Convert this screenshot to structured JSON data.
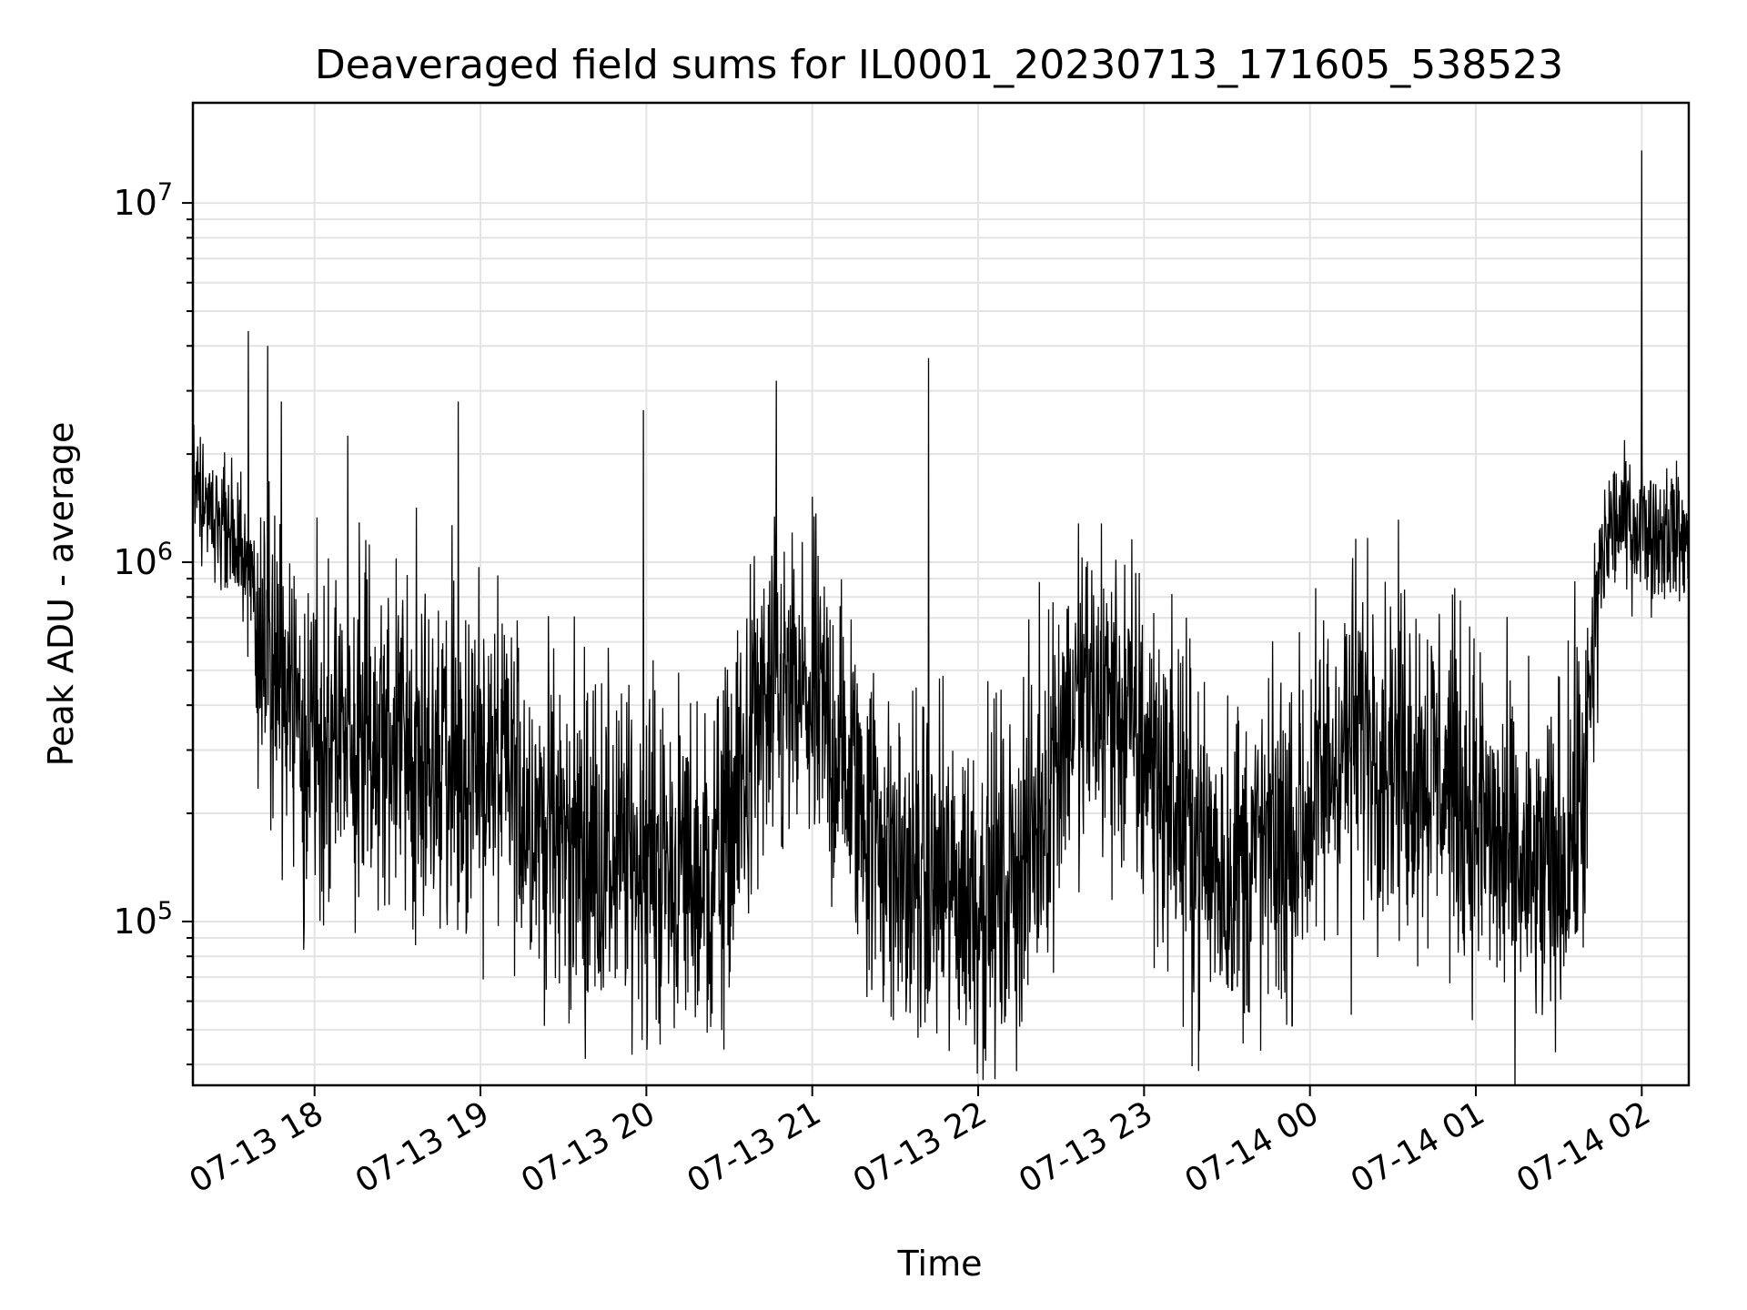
{
  "chart_data": {
    "type": "line",
    "title": "Deaveraged field sums for IL0001_20230713_171605_538523",
    "xlabel": "Time",
    "ylabel": "Peak ADU - average",
    "yscale": "log",
    "xlim": [
      "2023-07-13 17:16",
      "2023-07-14 02:17"
    ],
    "ylim": [
      35000,
      19000000
    ],
    "grid": true,
    "line_color": "#000000",
    "x_ticks": [
      {
        "time": "2023-07-13 18:00",
        "label": "07-13 18"
      },
      {
        "time": "2023-07-13 19:00",
        "label": "07-13 19"
      },
      {
        "time": "2023-07-13 20:00",
        "label": "07-13 20"
      },
      {
        "time": "2023-07-13 21:00",
        "label": "07-13 21"
      },
      {
        "time": "2023-07-13 22:00",
        "label": "07-13 22"
      },
      {
        "time": "2023-07-13 23:00",
        "label": "07-13 23"
      },
      {
        "time": "2023-07-14 00:00",
        "label": "07-14 00"
      },
      {
        "time": "2023-07-14 01:00",
        "label": "07-14 01"
      },
      {
        "time": "2023-07-14 02:00",
        "label": "07-14 02"
      }
    ],
    "y_ticks": [
      {
        "value": 100000,
        "base": "10",
        "exp": "5"
      },
      {
        "value": 1000000,
        "base": "10",
        "exp": "6"
      },
      {
        "value": 10000000,
        "base": "10",
        "exp": "7"
      }
    ],
    "series": [
      {
        "x": [
          "2023-07-13 17:16",
          "2023-07-13 17:20",
          "2023-07-13 17:25",
          "2023-07-13 17:30",
          "2023-07-13 17:34",
          "2023-07-13 17:38",
          "2023-07-13 17:42",
          "2023-07-13 17:45",
          "2023-07-13 17:50",
          "2023-07-13 17:55",
          "2023-07-13 18:00",
          "2023-07-13 18:10",
          "2023-07-13 18:20",
          "2023-07-13 18:30",
          "2023-07-13 18:40",
          "2023-07-13 18:50",
          "2023-07-13 19:00",
          "2023-07-13 19:10",
          "2023-07-13 19:20",
          "2023-07-13 19:30",
          "2023-07-13 19:40",
          "2023-07-13 19:50",
          "2023-07-13 20:00",
          "2023-07-13 20:10",
          "2023-07-13 20:20",
          "2023-07-13 20:30",
          "2023-07-13 20:40",
          "2023-07-13 20:50",
          "2023-07-13 21:00",
          "2023-07-13 21:10",
          "2023-07-13 21:20",
          "2023-07-13 21:30",
          "2023-07-13 21:40",
          "2023-07-13 21:50",
          "2023-07-13 22:00",
          "2023-07-13 22:10",
          "2023-07-13 22:20",
          "2023-07-13 22:30",
          "2023-07-13 22:40",
          "2023-07-13 22:50",
          "2023-07-13 23:00",
          "2023-07-13 23:10",
          "2023-07-13 23:20",
          "2023-07-13 23:30",
          "2023-07-13 23:40",
          "2023-07-13 23:50",
          "2023-07-14 00:00",
          "2023-07-14 00:10",
          "2023-07-14 00:20",
          "2023-07-14 00:30",
          "2023-07-14 00:40",
          "2023-07-14 00:50",
          "2023-07-14 01:00",
          "2023-07-14 01:10",
          "2023-07-14 01:20",
          "2023-07-14 01:30",
          "2023-07-14 01:40",
          "2023-07-14 01:45",
          "2023-07-14 01:50",
          "2023-07-14 01:55",
          "2023-07-14 02:00",
          "2023-07-14 02:05",
          "2023-07-14 02:10",
          "2023-07-14 02:17"
        ],
        "y": [
          1700000,
          1500000,
          1300000,
          1200000,
          1000000,
          800000,
          600000,
          450000,
          400000,
          380000,
          350000,
          330000,
          320000,
          300000,
          290000,
          280000,
          270000,
          250000,
          200000,
          170000,
          160000,
          150000,
          150000,
          140000,
          130000,
          180000,
          350000,
          400000,
          400000,
          300000,
          200000,
          140000,
          130000,
          120000,
          120000,
          125000,
          170000,
          350000,
          420000,
          400000,
          300000,
          220000,
          160000,
          140000,
          150000,
          160000,
          200000,
          300000,
          350000,
          300000,
          280000,
          250000,
          200000,
          150000,
          130000,
          140000,
          250000,
          1000000,
          1300000,
          1300000,
          1250000,
          1200000,
          1250000,
          1100000
        ],
        "spikes": [
          {
            "time": "2023-07-13 17:36",
            "value": 4400000
          },
          {
            "time": "2023-07-13 17:43",
            "value": 4000000
          },
          {
            "time": "2023-07-13 17:48",
            "value": 2800000
          },
          {
            "time": "2023-07-13 18:12",
            "value": 2250000
          },
          {
            "time": "2023-07-13 18:52",
            "value": 2800000
          },
          {
            "time": "2023-07-13 19:59",
            "value": 2650000
          },
          {
            "time": "2023-07-13 20:47",
            "value": 3200000
          },
          {
            "time": "2023-07-13 21:42",
            "value": 3700000
          },
          {
            "time": "2023-07-14 02:00",
            "value": 14000000
          }
        ],
        "minima": [
          {
            "time": "2023-07-13 20:28",
            "value": 44000
          },
          {
            "time": "2023-07-13 20:22",
            "value": 49000
          },
          {
            "time": "2023-07-13 21:34",
            "value": 56000
          },
          {
            "time": "2023-07-14 00:15",
            "value": 55000
          },
          {
            "time": "2023-07-14 01:27",
            "value": 60000
          }
        ]
      }
    ]
  }
}
